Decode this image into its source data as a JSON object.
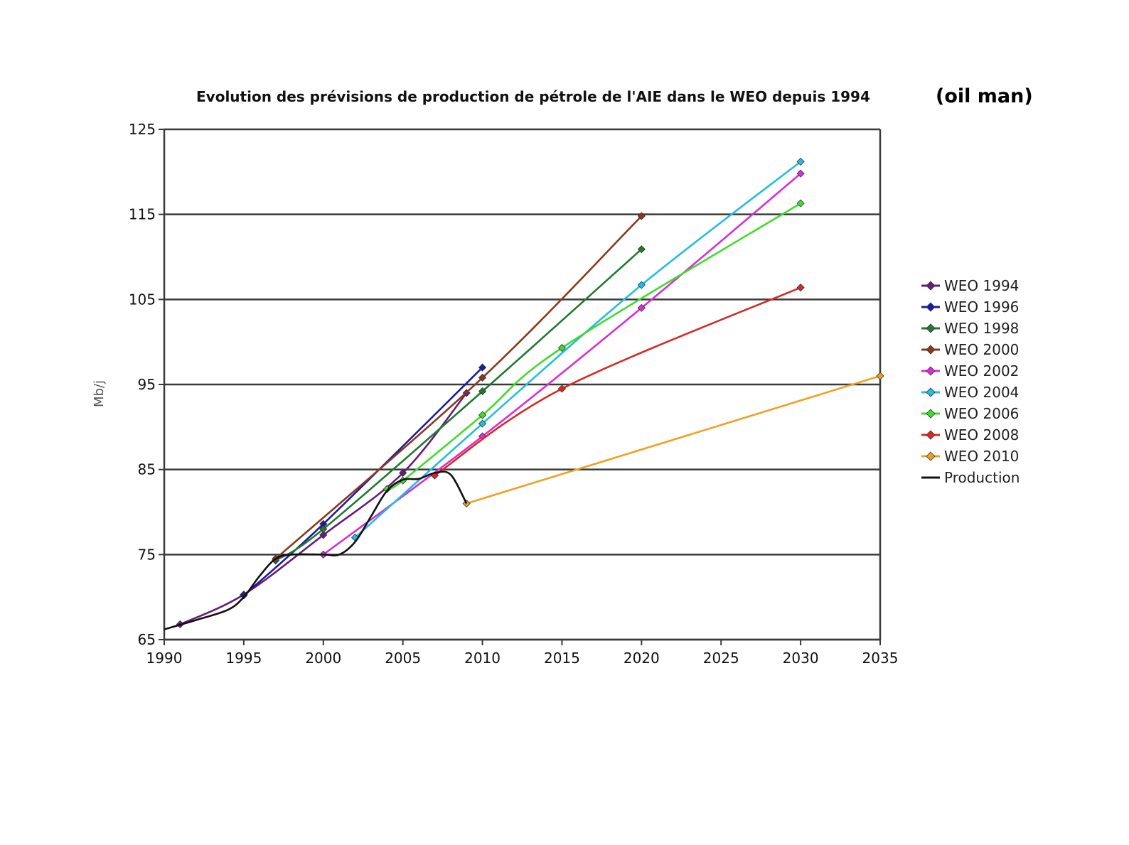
{
  "chart_data": {
    "type": "line",
    "title": "Evolution des prévisions de production de pétrole de l'AIE dans le WEO depuis 1994",
    "title_extra": "(oil man)",
    "xlabel": "",
    "ylabel": "Mb/j",
    "xlim": [
      1990,
      2035
    ],
    "ylim": [
      65,
      125
    ],
    "x_ticks": [
      1990,
      1995,
      2000,
      2005,
      2010,
      2015,
      2020,
      2025,
      2030,
      2035
    ],
    "y_ticks": [
      65,
      75,
      85,
      95,
      105,
      115,
      125
    ],
    "grid": true,
    "legend_position": "right",
    "series": [
      {
        "name": "WEO 1994",
        "color": "#6a1b7a",
        "points": [
          [
            1991,
            66.8
          ],
          [
            1995,
            70.3
          ],
          [
            2000,
            77.3
          ],
          [
            2005,
            84.6
          ],
          [
            2009,
            94.0
          ]
        ]
      },
      {
        "name": "WEO 1996",
        "color": "#1a1aa6",
        "points": [
          [
            1995,
            70.2
          ],
          [
            2000,
            78.6
          ],
          [
            2010,
            97.0
          ]
        ]
      },
      {
        "name": "WEO 1998",
        "color": "#1f7a2e",
        "points": [
          [
            1997,
            74.3
          ],
          [
            2000,
            78.0
          ],
          [
            2010,
            94.2
          ],
          [
            2020,
            110.9
          ]
        ]
      },
      {
        "name": "WEO 2000",
        "color": "#8a3a1a",
        "points": [
          [
            1997,
            74.5
          ],
          [
            2010,
            95.8
          ],
          [
            2020,
            114.8
          ]
        ]
      },
      {
        "name": "WEO 2002",
        "color": "#d62ed6",
        "points": [
          [
            2000,
            75.0
          ],
          [
            2010,
            88.9
          ],
          [
            2020,
            104.0
          ],
          [
            2030,
            119.8
          ]
        ]
      },
      {
        "name": "WEO 2004",
        "color": "#22bde0",
        "points": [
          [
            2002,
            77.0
          ],
          [
            2010,
            90.4
          ],
          [
            2020,
            106.7
          ],
          [
            2030,
            121.2
          ]
        ]
      },
      {
        "name": "WEO 2006",
        "color": "#3fdc2a",
        "points": [
          [
            2004,
            82.7
          ],
          [
            2005,
            83.7
          ],
          [
            2010,
            91.4
          ],
          [
            2015,
            99.3
          ],
          [
            2030,
            116.3
          ]
        ]
      },
      {
        "name": "WEO 2008",
        "color": "#d62a22",
        "points": [
          [
            2007,
            84.3
          ],
          [
            2015,
            94.5
          ],
          [
            2030,
            106.4
          ]
        ]
      },
      {
        "name": "WEO 2010",
        "color": "#f0a020",
        "points": [
          [
            2009,
            81.0
          ],
          [
            2035,
            96.0
          ]
        ]
      },
      {
        "name": "Production",
        "color": "#111111",
        "marker": false,
        "points": [
          [
            1990,
            66.2
          ],
          [
            1992,
            67.3
          ],
          [
            1994,
            68.5
          ],
          [
            1995,
            70.0
          ],
          [
            1996,
            72.5
          ],
          [
            1997,
            74.5
          ],
          [
            1998,
            75.0
          ],
          [
            2000,
            75.0
          ],
          [
            2001,
            75.0
          ],
          [
            2002,
            76.5
          ],
          [
            2003,
            79.5
          ],
          [
            2004,
            82.5
          ],
          [
            2005,
            83.8
          ],
          [
            2006,
            83.9
          ],
          [
            2007,
            84.6
          ],
          [
            2008,
            84.4
          ],
          [
            2009,
            81.0
          ]
        ]
      }
    ]
  }
}
